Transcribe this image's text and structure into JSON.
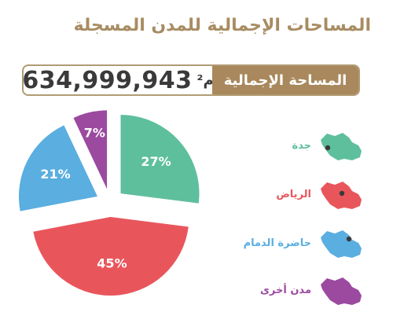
{
  "title": "المساحات الإجمالية للمدن المسجلة",
  "total": {
    "label": "المساحة الإجمالية",
    "value": "634,999,943",
    "unit": "م²"
  },
  "colors": {
    "accent": "#a8885c",
    "jeddah": "#5ebf9d",
    "riyadh": "#e8565c",
    "dammam": "#5aaee0",
    "other": "#9b4aa0"
  },
  "chart_data": {
    "type": "pie",
    "title": "",
    "slices": [
      {
        "name": "جدة",
        "value": 27,
        "label": "27%",
        "color": "#5ebf9d"
      },
      {
        "name": "الرياض",
        "value": 45,
        "label": "45%",
        "color": "#e8565c"
      },
      {
        "name": "حاضرة الدمام",
        "value": 21,
        "label": "21%",
        "color": "#5aaee0"
      },
      {
        "name": "مدن أخرى",
        "value": 7,
        "label": "7%",
        "color": "#9b4aa0"
      }
    ],
    "legend_position": "right",
    "exploded": true
  },
  "legend": [
    {
      "label": "جدة",
      "color": "#5ebf9d",
      "icon": "saudi-map-icon"
    },
    {
      "label": "الرياض",
      "color": "#e8565c",
      "icon": "saudi-map-icon"
    },
    {
      "label": "حاضرة الدمام",
      "color": "#5aaee0",
      "icon": "saudi-map-icon"
    },
    {
      "label": "مدن أخرى",
      "color": "#9b4aa0",
      "icon": "saudi-map-icon"
    }
  ]
}
